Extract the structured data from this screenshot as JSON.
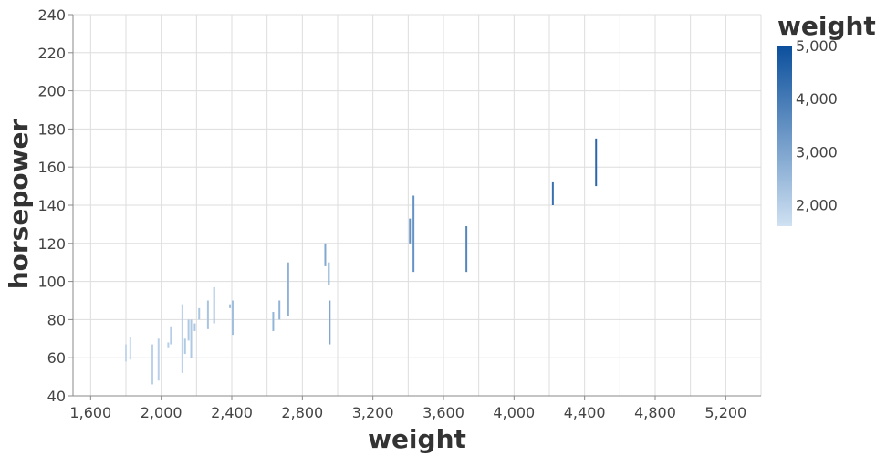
{
  "chart_data": {
    "type": "range-bar",
    "x_title": "weight",
    "y_title": "horsepower",
    "xlim": [
      1500,
      5400
    ],
    "ylim": [
      40,
      240
    ],
    "x_ticks": [
      1600,
      2000,
      2400,
      2800,
      3200,
      3600,
      4000,
      4400,
      4800,
      5200
    ],
    "y_ticks": [
      40,
      60,
      80,
      100,
      120,
      140,
      160,
      180,
      200,
      220,
      240
    ],
    "x_tick_labels": [
      "1,600",
      "2,000",
      "2,400",
      "2,800",
      "3,200",
      "3,600",
      "4,000",
      "4,400",
      "4,800",
      "5,200"
    ],
    "y_tick_labels": [
      "40",
      "60",
      "80",
      "100",
      "120",
      "140",
      "160",
      "180",
      "200",
      "220",
      "240"
    ],
    "grid": true,
    "legend": {
      "title": "weight",
      "placement": "right",
      "color_range": [
        1600,
        5000
      ],
      "colors": [
        "#cfe1f2",
        "#0b4f9c"
      ],
      "ticks": [
        2000,
        3000,
        4000,
        5000
      ],
      "tick_labels": [
        "2,000",
        "3,000",
        "4,000",
        "5,000"
      ]
    },
    "series": [
      {
        "x": 1800,
        "y_min": 58,
        "y_max": 67
      },
      {
        "x": 1825,
        "y_min": 59,
        "y_max": 71
      },
      {
        "x": 1950,
        "y_min": 46,
        "y_max": 67
      },
      {
        "x": 1985,
        "y_min": 48,
        "y_max": 70
      },
      {
        "x": 2040,
        "y_min": 65,
        "y_max": 68
      },
      {
        "x": 2055,
        "y_min": 67,
        "y_max": 76
      },
      {
        "x": 2120,
        "y_min": 52,
        "y_max": 88
      },
      {
        "x": 2135,
        "y_min": 62,
        "y_max": 70
      },
      {
        "x": 2155,
        "y_min": 69,
        "y_max": 80
      },
      {
        "x": 2170,
        "y_min": 60,
        "y_max": 80
      },
      {
        "x": 2190,
        "y_min": 74,
        "y_max": 78
      },
      {
        "x": 2215,
        "y_min": 80,
        "y_max": 86
      },
      {
        "x": 2265,
        "y_min": 75,
        "y_max": 90
      },
      {
        "x": 2300,
        "y_min": 78,
        "y_max": 97
      },
      {
        "x": 2390,
        "y_min": 86,
        "y_max": 88
      },
      {
        "x": 2405,
        "y_min": 72,
        "y_max": 90
      },
      {
        "x": 2635,
        "y_min": 74,
        "y_max": 84
      },
      {
        "x": 2670,
        "y_min": 80,
        "y_max": 90
      },
      {
        "x": 2720,
        "y_min": 82,
        "y_max": 110
      },
      {
        "x": 2930,
        "y_min": 108,
        "y_max": 120
      },
      {
        "x": 2950,
        "y_min": 98,
        "y_max": 110
      },
      {
        "x": 2955,
        "y_min": 67,
        "y_max": 90
      },
      {
        "x": 3410,
        "y_min": 120,
        "y_max": 133
      },
      {
        "x": 3430,
        "y_min": 105,
        "y_max": 145
      },
      {
        "x": 3730,
        "y_min": 105,
        "y_max": 129
      },
      {
        "x": 4220,
        "y_min": 140,
        "y_max": 152
      },
      {
        "x": 4465,
        "y_min": 150,
        "y_max": 175
      }
    ]
  }
}
